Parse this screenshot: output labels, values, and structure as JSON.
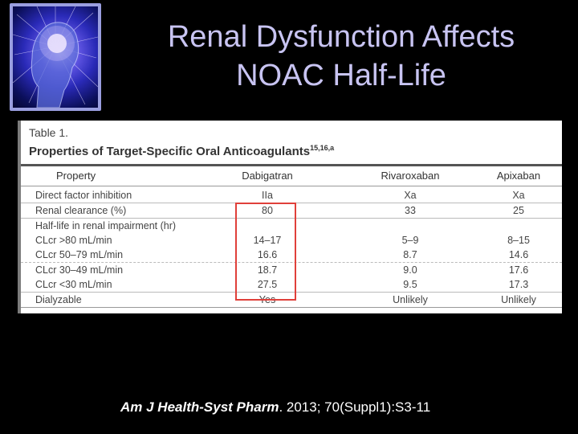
{
  "slide": {
    "title_line1": "Renal Dysfunction Affects",
    "title_line2": "NOAC Half-Life",
    "logo_icon": "brain-head-icon"
  },
  "table": {
    "label": "Table 1.",
    "caption": "Properties of Target-Specific Oral Anticoagulants",
    "caption_sup": "15,16,a",
    "columns": [
      "Property",
      "Dabigatran",
      "Rivaroxaban",
      "Apixaban"
    ],
    "rows": [
      {
        "property": "Direct factor inhibition",
        "values": [
          "IIa",
          "Xa",
          "Xa"
        ]
      },
      {
        "property": "Renal clearance (%)",
        "values": [
          "80",
          "33",
          "25"
        ]
      },
      {
        "property": "Half-life in renal impairment (hr)",
        "values": [
          "",
          "",
          ""
        ]
      },
      {
        "property": "CLcr >80 mL/min",
        "values": [
          "14–17",
          "5–9",
          "8–15"
        ]
      },
      {
        "property": "CLcr 50–79 mL/min",
        "values": [
          "16.6",
          "8.7",
          "14.6"
        ]
      },
      {
        "property": "CLcr 30–49 mL/min",
        "values": [
          "18.7",
          "9.0",
          "17.6"
        ]
      },
      {
        "property": "CLcr <30 mL/min",
        "values": [
          "27.5",
          "9.5",
          "17.3"
        ]
      },
      {
        "property": "Dialyzable",
        "values": [
          "Yes",
          "Unlikely",
          "Unlikely"
        ]
      }
    ],
    "highlight_color": "#e0403a"
  },
  "citation": {
    "journal": "Am J Health-Syst Pharm",
    "details": ". 2013; 70(Suppl1):S3-11"
  }
}
